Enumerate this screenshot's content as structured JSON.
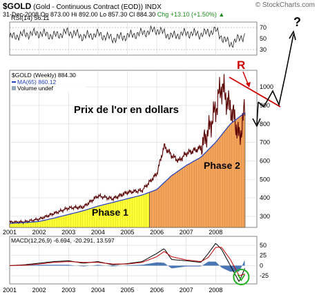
{
  "header": {
    "symbol": "$GOLD",
    "name": "(Gold - Continuous Contract (EOD))",
    "exchange": "INDX",
    "date": "31-Dec-2008",
    "open": "Op 873.00",
    "high": "Hi 892.00",
    "low": "Lo 857.30",
    "close": "Cl 884.30",
    "change": "Chg +13.10 (+1.50%)",
    "change_arrow": "▲",
    "credit": "© StockCharts.com"
  },
  "annotations": {
    "main_title": "Prix de l'or en dollars",
    "phase1": "Phase 1",
    "phase2": "Phase 2",
    "resistance_label": "R",
    "question": "?"
  },
  "colors": {
    "price": "#5a0000",
    "ma": "#1f3fbf",
    "phase1": "#ffff33",
    "phase2": "#f5a45a",
    "resistance": "#cc0000",
    "macd": "#000000",
    "signal": "#c00000",
    "histogram": "#2a5ea8",
    "circle": "#22b022",
    "grid": "#d9d9d9"
  },
  "chart_data": [
    {
      "type": "line",
      "title": "RSI(14) 56.11",
      "x": [
        2001.0,
        2001.5,
        2002.0,
        2002.5,
        2003.0,
        2003.5,
        2004.0,
        2004.5,
        2005.0,
        2005.5,
        2006.0,
        2006.5,
        2007.0,
        2007.5,
        2008.0,
        2008.25,
        2008.5,
        2008.75,
        2008.99
      ],
      "values": [
        52,
        58,
        60,
        55,
        62,
        54,
        58,
        50,
        55,
        60,
        66,
        54,
        60,
        58,
        65,
        50,
        40,
        48,
        56.11
      ],
      "yticks": [
        30,
        50,
        70
      ],
      "ylim": [
        20,
        80
      ],
      "reference_lines": [
        30,
        70
      ]
    },
    {
      "type": "line",
      "legend": [
        "$GOLD (Weekly) 884.30",
        "MA(65) 860.12",
        "Volume undef"
      ],
      "series": [
        {
          "name": "$GOLD (Weekly)",
          "x": [
            2001.0,
            2001.5,
            2002.0,
            2002.5,
            2003.0,
            2003.5,
            2004.0,
            2004.5,
            2005.0,
            2005.5,
            2006.0,
            2006.25,
            2006.5,
            2006.75,
            2007.0,
            2007.5,
            2007.75,
            2008.0,
            2008.2,
            2008.45,
            2008.6,
            2008.82,
            2008.99
          ],
          "values": [
            268,
            270,
            285,
            315,
            345,
            350,
            410,
            395,
            430,
            440,
            530,
            680,
            630,
            600,
            640,
            670,
            760,
            880,
            1010,
            900,
            850,
            720,
            884.3
          ]
        },
        {
          "name": "MA(65)",
          "x": [
            2001.0,
            2001.5,
            2002.0,
            2002.5,
            2003.0,
            2003.5,
            2004.0,
            2004.5,
            2005.0,
            2005.5,
            2006.0,
            2006.5,
            2007.0,
            2007.5,
            2008.0,
            2008.5,
            2008.99
          ],
          "values": [
            262,
            266,
            272,
            290,
            310,
            330,
            355,
            375,
            395,
            415,
            445,
            520,
            575,
            620,
            700,
            800,
            860.12
          ]
        }
      ],
      "xticks": [
        "2001",
        "2002",
        "2003",
        "2004",
        "2005",
        "2006",
        "2007",
        "2008"
      ],
      "yticks": [
        300,
        400,
        500,
        600,
        700,
        800,
        900,
        1000
      ],
      "ylim": [
        240,
        1090
      ],
      "xlim": [
        2001.0,
        2009.4
      ],
      "phases": [
        {
          "label": "Phase 1",
          "start": 2001.0,
          "end": 2005.75
        },
        {
          "label": "Phase 2",
          "start": 2005.75,
          "end": 2009.0
        }
      ]
    },
    {
      "type": "line",
      "title": "MACD(12,26,9) -6.694, -20.291, 13.597",
      "x": [
        2001.0,
        2001.5,
        2002.0,
        2002.5,
        2003.0,
        2003.5,
        2004.0,
        2004.5,
        2005.0,
        2005.5,
        2006.0,
        2006.25,
        2006.5,
        2007.0,
        2007.5,
        2007.75,
        2008.0,
        2008.2,
        2008.5,
        2008.8,
        2008.99
      ],
      "series": [
        {
          "name": "MACD",
          "values": [
            0,
            2,
            6,
            10,
            12,
            6,
            10,
            2,
            5,
            10,
            30,
            42,
            15,
            12,
            8,
            30,
            55,
            40,
            0,
            -40,
            -6.694
          ]
        },
        {
          "name": "Signal",
          "values": [
            0,
            1,
            4,
            8,
            10,
            8,
            8,
            4,
            4,
            8,
            22,
            35,
            22,
            14,
            10,
            20,
            45,
            45,
            15,
            -25,
            -20.291
          ]
        },
        {
          "name": "Histogram",
          "values": [
            0,
            1,
            2,
            2,
            2,
            -2,
            2,
            -2,
            1,
            2,
            8,
            7,
            -7,
            -2,
            -2,
            10,
            10,
            -5,
            -15,
            -15,
            13.597
          ]
        }
      ],
      "xticks": [
        "2001",
        "2002",
        "2003",
        "2004",
        "2005",
        "2006",
        "2007",
        "2008"
      ],
      "yticks": [
        -25,
        0,
        25,
        50
      ],
      "ylim": [
        -45,
        72
      ],
      "xlim": [
        2001.0,
        2009.4
      ]
    }
  ]
}
